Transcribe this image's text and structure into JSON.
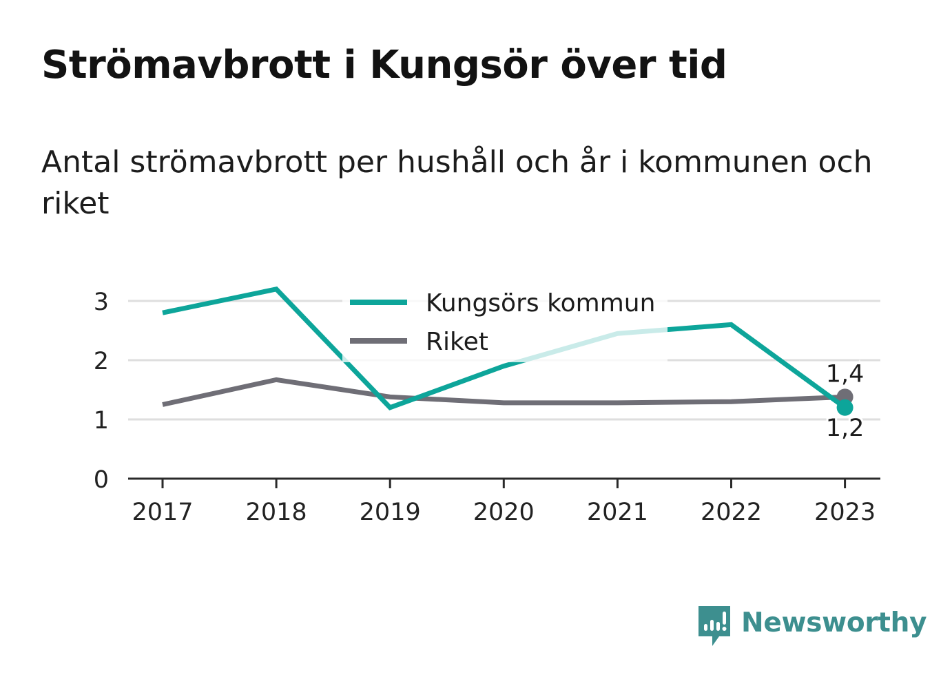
{
  "title": "Strömavbrott i Kungsör över tid",
  "subtitle": "Antal strömavbrott per hushåll och år i kommunen och riket",
  "brand": {
    "name": "Newsworthy",
    "icon": "newsworthy-logo-icon"
  },
  "chart_data": {
    "type": "line",
    "title": "Strömavbrott i Kungsör över tid",
    "subtitle": "Antal strömavbrott per hushåll och år i kommunen och riket",
    "xlabel": "",
    "ylabel": "",
    "x": [
      "2017",
      "2018",
      "2019",
      "2020",
      "2021",
      "2022",
      "2023"
    ],
    "ylim": [
      0,
      3.5
    ],
    "yticks": [
      "0",
      "1",
      "2",
      "3"
    ],
    "grid": true,
    "legend_position": "top-center",
    "series": [
      {
        "name": "Kungsörs kommun",
        "color": "#0da59a",
        "values": [
          2.8,
          3.2,
          1.2,
          1.9,
          2.45,
          2.6,
          1.2
        ]
      },
      {
        "name": "Riket",
        "color": "#6f6e76",
        "values": [
          1.25,
          1.67,
          1.38,
          1.28,
          1.28,
          1.3,
          1.38
        ]
      }
    ],
    "end_labels": [
      {
        "series": "Riket",
        "text": "1,4",
        "position": "above"
      },
      {
        "series": "Kungsörs kommun",
        "text": "1,2",
        "position": "below"
      }
    ]
  }
}
